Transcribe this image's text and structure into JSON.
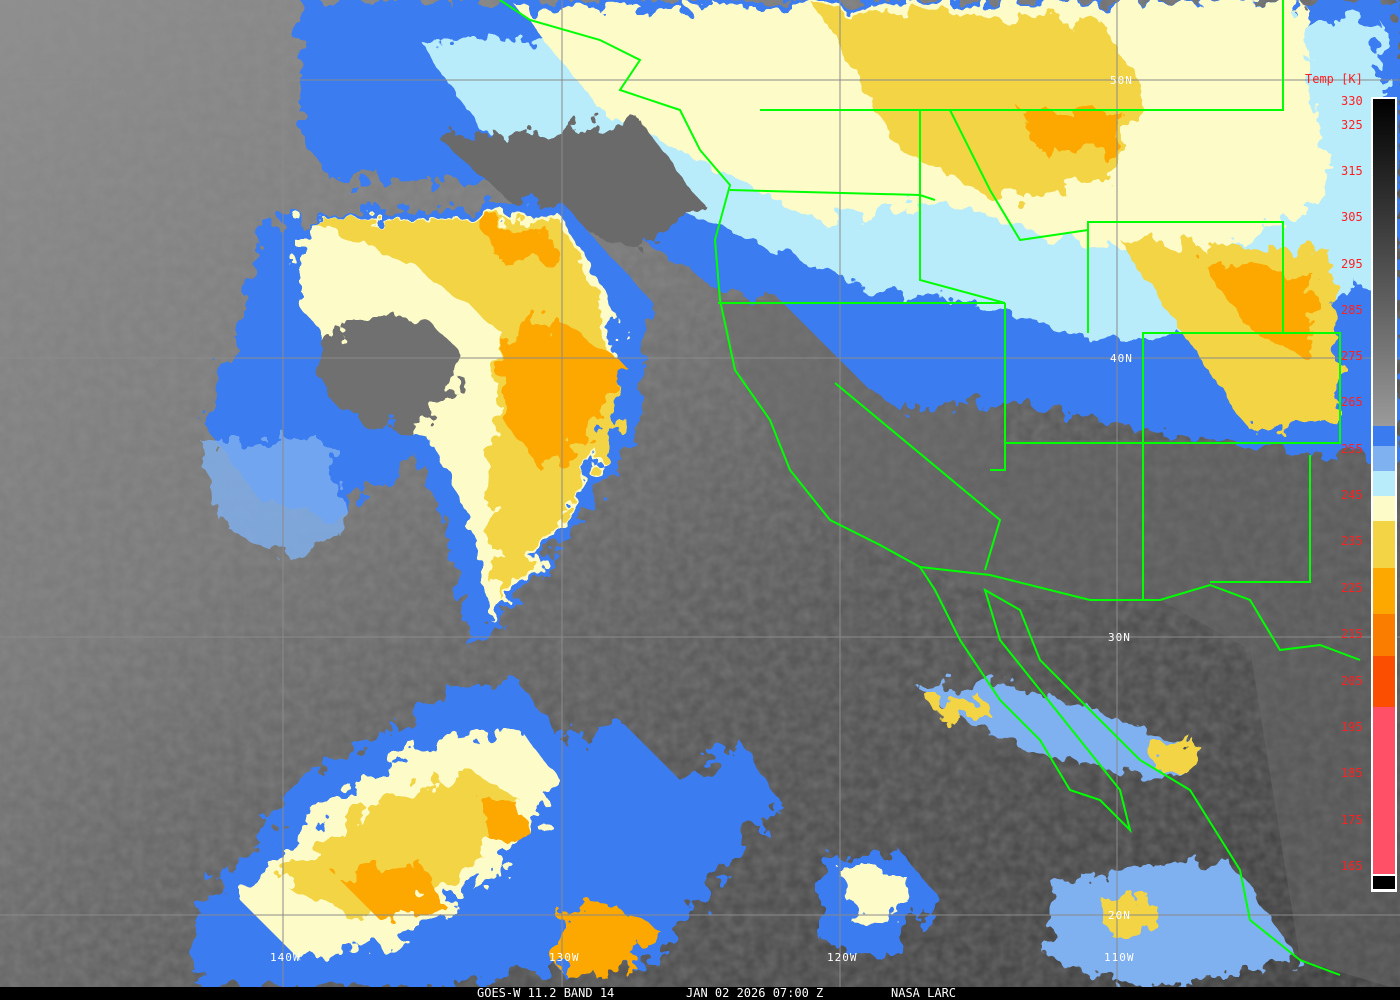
{
  "footer": {
    "satellite": "GOES-W 11.2 BAND 14",
    "datetime": "JAN 02 2026 07:00 Z",
    "source": "NASA LARC"
  },
  "colorbar": {
    "title": "Temp [K]",
    "labels": [
      "330",
      "325",
      "315",
      "305",
      "295",
      "285",
      "275",
      "265",
      "255",
      "245",
      "235",
      "225",
      "215",
      "205",
      "195",
      "185",
      "175",
      "165"
    ],
    "colors": {
      "gray_top": "#000000",
      "gray_bottom": "#9a9a9a",
      "blue": "#3a7bf0",
      "light_blue": "#7fb0f0",
      "pale_cyan": "#b8ecfb",
      "cream": "#fdfbc8",
      "yellow": "#f2d444",
      "orange": "#fca800",
      "dark_orange": "#fb7d00",
      "red_orange": "#fc4e00",
      "pink": "#ff5068",
      "black": "#000000"
    }
  },
  "grid": {
    "lat_labels": [
      "50N",
      "40N",
      "30N",
      "20N"
    ],
    "lon_labels": [
      "140W",
      "130W",
      "120W",
      "110W"
    ]
  },
  "colors": {
    "borders": "#00ff00",
    "grid": "#8a8a8a",
    "label_red": "#ff2020"
  }
}
